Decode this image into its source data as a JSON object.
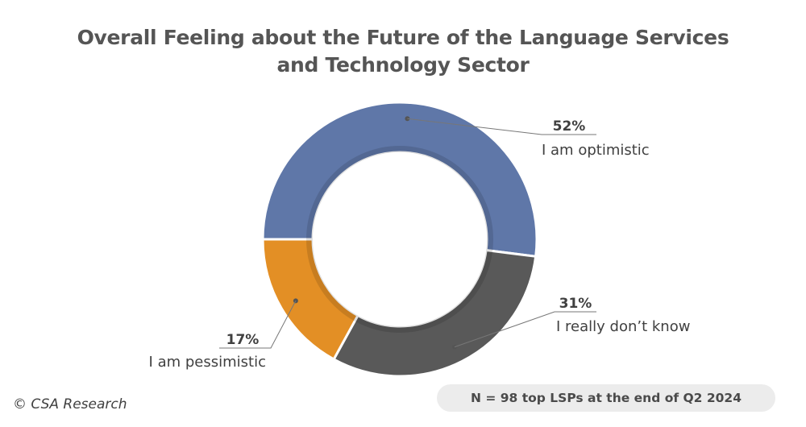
{
  "title_line1": "Overall Feeling about the Future of the Language Services",
  "title_line2": "and Technology Sector",
  "credit": "© CSA Research",
  "note": "N = 98 top LSPs at the end of Q2 2024",
  "chart_data": {
    "type": "pie",
    "variant": "donut",
    "title": "Overall Feeling about the Future of the Language Services and Technology Sector",
    "series": [
      {
        "name": "I am optimistic",
        "value": 52,
        "label": "52%",
        "color": "#5f77a8"
      },
      {
        "name": "I really don’t know",
        "value": 31,
        "label": "31%",
        "color": "#595959"
      },
      {
        "name": "I am pessimistic",
        "value": 17,
        "label": "17%",
        "color": "#e38f25"
      }
    ]
  }
}
